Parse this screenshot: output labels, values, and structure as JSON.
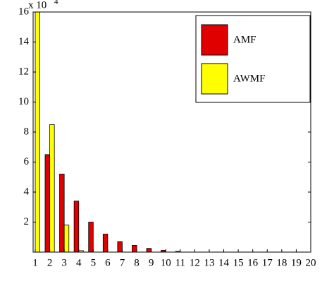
{
  "chart_data": {
    "type": "bar",
    "multiplier": "x 10",
    "multiplier_exp": "4",
    "x": [
      1,
      2,
      3,
      4,
      5,
      6,
      7,
      8,
      9,
      10,
      11,
      12,
      13,
      14,
      15,
      16,
      17,
      18,
      19,
      20
    ],
    "xlim": [
      1,
      20
    ],
    "xticks": [
      1,
      2,
      3,
      4,
      5,
      6,
      7,
      8,
      9,
      10,
      11,
      12,
      13,
      14,
      15,
      16,
      17,
      18,
      19,
      20
    ],
    "ylim": [
      0,
      16
    ],
    "yticks": [
      2,
      4,
      6,
      8,
      10,
      12,
      14,
      16
    ],
    "legend": "upper right",
    "series": [
      {
        "name": "AMF",
        "color": "#e00000",
        "values": [
          0,
          6.5,
          5.2,
          3.4,
          2.0,
          1.2,
          0.7,
          0.45,
          0.25,
          0.12,
          0.05,
          0,
          0,
          0,
          0,
          0,
          0,
          0,
          0,
          0
        ]
      },
      {
        "name": "AWMF",
        "color": "#ffff00",
        "values": [
          16,
          8.5,
          1.8,
          0.1,
          0,
          0,
          0,
          0,
          0,
          0,
          0,
          0,
          0,
          0,
          0,
          0,
          0,
          0,
          0,
          0
        ]
      }
    ]
  }
}
